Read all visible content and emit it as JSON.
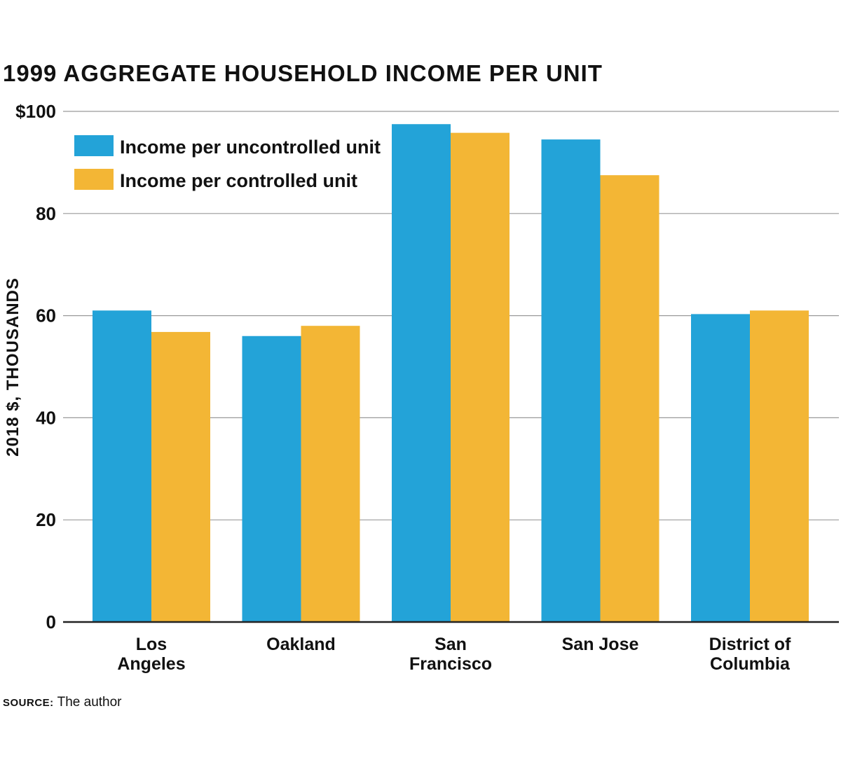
{
  "chart_data": {
    "type": "bar",
    "title": "1999 AGGREGATE HOUSEHOLD INCOME PER UNIT",
    "xlabel": "",
    "ylabel": "2018 $, THOUSANDS",
    "ylim": [
      0,
      100
    ],
    "y_ticks": [
      0,
      20,
      40,
      60,
      80,
      100
    ],
    "y_tick_labels": [
      "0",
      "20",
      "40",
      "60",
      "80",
      "$100"
    ],
    "grid": true,
    "legend_position": "top-left",
    "categories": [
      [
        "Los",
        "Angeles"
      ],
      [
        "Oakland"
      ],
      [
        "San",
        "Francisco"
      ],
      [
        "San Jose"
      ],
      [
        "District of",
        "Columbia"
      ]
    ],
    "series": [
      {
        "name": "Income per uncontrolled unit",
        "color": "#23a3d8",
        "values": [
          61,
          56,
          97.5,
          94.5,
          60.3
        ]
      },
      {
        "name": "Income per controlled unit",
        "color": "#f3b635",
        "values": [
          56.8,
          58,
          95.8,
          87.5,
          61
        ]
      }
    ]
  },
  "source": {
    "label": "SOURCE:",
    "text": "The author"
  },
  "colors": {
    "grid": "#9a9a9a",
    "axis": "#222222",
    "text": "#111111"
  }
}
